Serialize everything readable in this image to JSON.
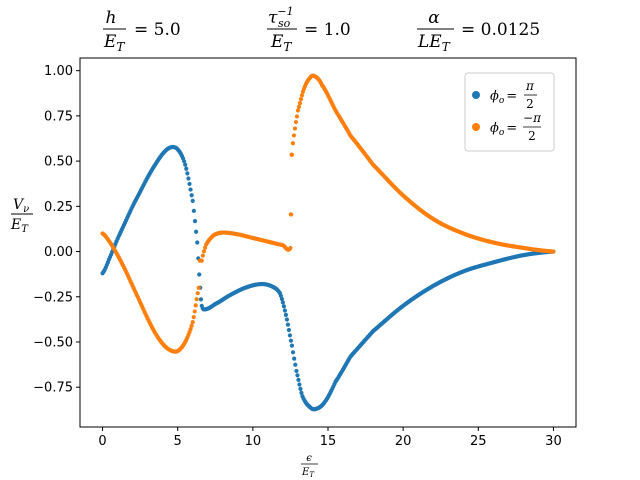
{
  "header": {
    "params": [
      {
        "num": "h",
        "den_base": "E",
        "den_sub": "T",
        "rhs": "= 5.0"
      },
      {
        "num_base": "τ",
        "num_sub": "so",
        "num_sup": "−1",
        "den_base": "E",
        "den_sub": "T",
        "rhs": "= 1.0"
      },
      {
        "num": "α",
        "den_base": "LE",
        "den_sub": "T",
        "rhs": "= 0.0125"
      }
    ]
  },
  "chart_data": {
    "type": "scatter",
    "title": "",
    "xlabel": {
      "num": "ϵ",
      "den_base": "E",
      "den_sub": "T"
    },
    "ylabel": {
      "num_base": "V",
      "num_sub": "ν",
      "den_base": "E",
      "den_sub": "T"
    },
    "xlim": [
      -1.5,
      31.5
    ],
    "ylim": [
      -0.97,
      1.07
    ],
    "x_ticks": [
      0,
      5,
      10,
      15,
      20,
      25,
      30
    ],
    "x_tick_labels": [
      "0",
      "5",
      "10",
      "15",
      "20",
      "25",
      "30"
    ],
    "y_ticks": [
      1.0,
      0.75,
      0.5,
      0.25,
      0.0,
      -0.25,
      -0.5,
      -0.75
    ],
    "y_tick_labels": [
      "1.00",
      "0.75",
      "0.50",
      "0.25",
      "0.00",
      "−0.25",
      "−0.50",
      "−0.75"
    ],
    "grid": false,
    "legend_position": "top-right",
    "series": [
      {
        "name_base": "ϕ",
        "name_sub": "o",
        "name_eq": "=",
        "name_num": "π",
        "name_den": "2",
        "color": "#1f77b4",
        "points": [
          [
            0.0,
            -0.12
          ],
          [
            0.5,
            -0.03
          ],
          [
            1.0,
            0.07
          ],
          [
            1.5,
            0.16
          ],
          [
            2.0,
            0.25
          ],
          [
            2.5,
            0.33
          ],
          [
            3.0,
            0.41
          ],
          [
            3.5,
            0.48
          ],
          [
            4.0,
            0.54
          ],
          [
            4.5,
            0.575
          ],
          [
            5.0,
            0.565
          ],
          [
            5.5,
            0.48
          ],
          [
            6.0,
            0.28
          ],
          [
            6.3,
            0.05
          ],
          [
            6.5,
            -0.2
          ],
          [
            6.6,
            -0.3
          ],
          [
            6.8,
            -0.32
          ],
          [
            7.5,
            -0.29
          ],
          [
            8.5,
            -0.24
          ],
          [
            9.5,
            -0.2
          ],
          [
            10.5,
            -0.18
          ],
          [
            11.2,
            -0.19
          ],
          [
            11.8,
            -0.23
          ],
          [
            12.2,
            -0.35
          ],
          [
            12.6,
            -0.52
          ],
          [
            12.9,
            -0.66
          ],
          [
            13.3,
            -0.8
          ],
          [
            13.8,
            -0.86
          ],
          [
            14.2,
            -0.87
          ],
          [
            14.8,
            -0.83
          ],
          [
            15.5,
            -0.72
          ],
          [
            16.5,
            -0.58
          ],
          [
            18.0,
            -0.44
          ],
          [
            20.0,
            -0.3
          ],
          [
            22.0,
            -0.19
          ],
          [
            24.0,
            -0.11
          ],
          [
            26.0,
            -0.06
          ],
          [
            28.0,
            -0.02
          ],
          [
            30.0,
            0.0
          ]
        ]
      },
      {
        "name_base": "ϕ",
        "name_sub": "o",
        "name_eq": "=",
        "name_num": "−π",
        "name_den": "2",
        "color": "#ff7f0e",
        "points": [
          [
            0.0,
            0.1
          ],
          [
            0.5,
            0.05
          ],
          [
            1.0,
            -0.02
          ],
          [
            1.5,
            -0.1
          ],
          [
            2.0,
            -0.19
          ],
          [
            2.5,
            -0.28
          ],
          [
            3.0,
            -0.37
          ],
          [
            3.5,
            -0.45
          ],
          [
            4.0,
            -0.51
          ],
          [
            4.5,
            -0.545
          ],
          [
            5.0,
            -0.55
          ],
          [
            5.5,
            -0.5
          ],
          [
            6.0,
            -0.39
          ],
          [
            6.4,
            -0.2
          ],
          [
            6.6,
            -0.05
          ],
          [
            6.9,
            0.04
          ],
          [
            7.4,
            0.09
          ],
          [
            8.0,
            0.105
          ],
          [
            9.0,
            0.095
          ],
          [
            10.0,
            0.075
          ],
          [
            11.0,
            0.055
          ],
          [
            12.0,
            0.035
          ],
          [
            12.5,
            0.02
          ],
          [
            12.55,
            0.205
          ],
          [
            12.6,
            0.535
          ],
          [
            12.8,
            0.68
          ],
          [
            13.0,
            0.78
          ],
          [
            13.4,
            0.9
          ],
          [
            13.8,
            0.96
          ],
          [
            14.1,
            0.97
          ],
          [
            14.6,
            0.92
          ],
          [
            15.5,
            0.78
          ],
          [
            16.5,
            0.64
          ],
          [
            18.0,
            0.48
          ],
          [
            20.0,
            0.31
          ],
          [
            22.0,
            0.18
          ],
          [
            24.0,
            0.1
          ],
          [
            26.0,
            0.05
          ],
          [
            28.0,
            0.02
          ],
          [
            30.0,
            0.0
          ]
        ]
      }
    ]
  }
}
